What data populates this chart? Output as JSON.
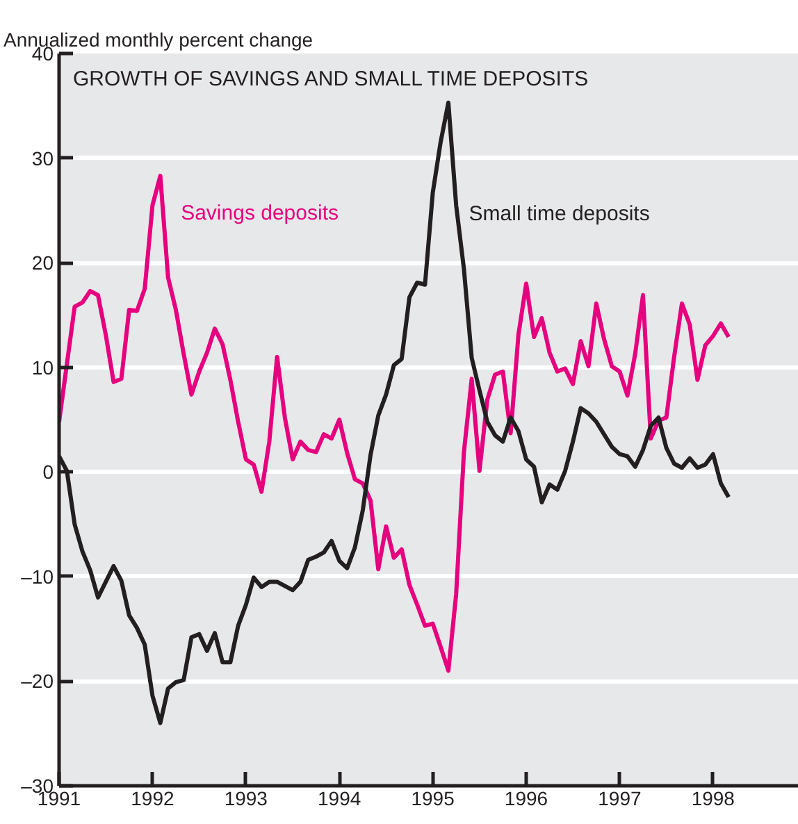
{
  "chart_data": {
    "type": "line",
    "title": "GROWTH OF SAVINGS AND SMALL TIME DEPOSITS",
    "ylabel": "Annualized monthly percent change",
    "x": [
      "1991-01",
      "1991-02",
      "1991-03",
      "1991-04",
      "1991-05",
      "1991-06",
      "1991-07",
      "1991-08",
      "1991-09",
      "1991-10",
      "1991-11",
      "1991-12",
      "1992-01",
      "1992-02",
      "1992-03",
      "1992-04",
      "1992-05",
      "1992-06",
      "1992-07",
      "1992-08",
      "1992-09",
      "1992-10",
      "1992-11",
      "1992-12",
      "1993-01",
      "1993-02",
      "1993-03",
      "1993-04",
      "1993-05",
      "1993-06",
      "1993-07",
      "1993-08",
      "1993-09",
      "1993-10",
      "1993-11",
      "1993-12",
      "1994-01",
      "1994-02",
      "1994-03",
      "1994-04",
      "1994-05",
      "1994-06",
      "1994-07",
      "1994-08",
      "1994-09",
      "1994-10",
      "1994-11",
      "1994-12",
      "1995-01",
      "1995-02",
      "1995-03",
      "1995-04",
      "1995-05",
      "1995-06",
      "1995-07",
      "1995-08",
      "1995-09",
      "1995-10",
      "1995-11",
      "1995-12",
      "1996-01",
      "1996-02",
      "1996-03",
      "1996-04",
      "1996-05",
      "1996-06",
      "1996-07",
      "1996-08",
      "1996-09",
      "1996-10",
      "1996-11",
      "1996-12",
      "1997-01",
      "1997-02",
      "1997-03",
      "1997-04",
      "1997-05",
      "1997-06",
      "1997-07",
      "1997-08",
      "1997-09",
      "1997-10",
      "1997-11",
      "1997-12",
      "1998-01",
      "1998-02",
      "1998-03"
    ],
    "series": [
      {
        "name": "Savings deposits",
        "color": "#e6007e",
        "values": [
          4.8,
          10.3,
          15.8,
          16.2,
          17.3,
          16.9,
          13.1,
          8.6,
          8.9,
          15.5,
          15.4,
          17.5,
          25.5,
          28.3,
          18.6,
          15.5,
          11.3,
          7.4,
          9.6,
          11.4,
          13.7,
          12.2,
          8.8,
          4.8,
          1.2,
          0.7,
          -1.9,
          2.9,
          11.0,
          5.2,
          1.2,
          2.9,
          2.1,
          1.9,
          3.6,
          3.2,
          5.0,
          1.8,
          -0.7,
          -1.1,
          -2.7,
          -9.3,
          -5.2,
          -8.2,
          -7.4,
          -10.8,
          -12.7,
          -14.7,
          -14.5,
          -16.7,
          -19.0,
          -11.7,
          1.9,
          8.9,
          0.1,
          6.9,
          9.3,
          9.6,
          3.7,
          13.1,
          18.0,
          12.9,
          14.7,
          11.4,
          9.6,
          9.9,
          8.4,
          12.5,
          10.1,
          16.1,
          12.7,
          10.1,
          9.6,
          7.3,
          11.3,
          16.9,
          3.2,
          4.9,
          5.2,
          11.0,
          16.1,
          14.1,
          8.8,
          12.1,
          13.0,
          14.2,
          12.9
        ]
      },
      {
        "name": "Small time deposits",
        "color": "#231f20",
        "values": [
          1.5,
          0.1,
          -5.0,
          -7.6,
          -9.4,
          -12.0,
          -10.5,
          -9.0,
          -10.4,
          -13.7,
          -14.9,
          -16.5,
          -21.4,
          -24.0,
          -20.7,
          -20.1,
          -19.9,
          -15.8,
          -15.5,
          -17.1,
          -15.4,
          -18.2,
          -18.2,
          -14.7,
          -12.7,
          -10.1,
          -11.0,
          -10.5,
          -10.5,
          -10.9,
          -11.3,
          -10.5,
          -8.4,
          -8.1,
          -7.7,
          -6.6,
          -8.5,
          -9.2,
          -7.2,
          -3.7,
          1.6,
          5.4,
          7.4,
          10.2,
          10.8,
          16.7,
          18.1,
          17.9,
          26.7,
          31.5,
          35.3,
          25.5,
          19.4,
          10.9,
          7.8,
          4.8,
          3.5,
          2.9,
          5.2,
          3.9,
          1.2,
          0.5,
          -2.9,
          -1.2,
          -1.7,
          0.1,
          2.9,
          6.1,
          5.6,
          4.8,
          3.6,
          2.4,
          1.7,
          1.5,
          0.5,
          2.1,
          4.4,
          5.2,
          2.3,
          0.8,
          0.4,
          1.3,
          0.4,
          0.7,
          1.7,
          -1.1,
          -2.4
        ]
      }
    ],
    "xlim": [
      "1991-01",
      "1998-12"
    ],
    "xticks": [
      "1991",
      "1992",
      "1993",
      "1994",
      "1995",
      "1996",
      "1997",
      "1998"
    ],
    "ylim": [
      -30,
      40
    ],
    "yticks": [
      {
        "value": -30,
        "label": "–30"
      },
      {
        "value": -20,
        "label": "–20"
      },
      {
        "value": -10,
        "label": "–10"
      },
      0,
      10,
      20,
      30,
      40
    ],
    "grid": "y",
    "legend": false,
    "line_style": "solid"
  }
}
